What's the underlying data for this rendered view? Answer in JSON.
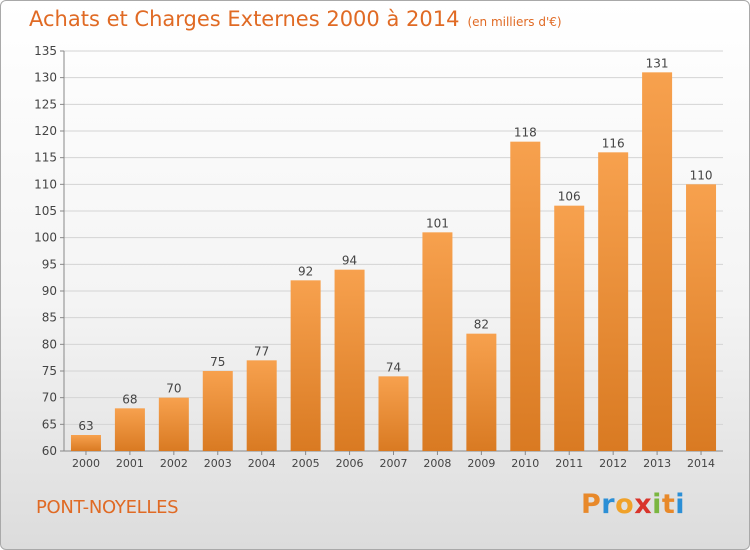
{
  "header": {
    "title": "Achats et Charges Externes 2000 à 2014",
    "subtitle": "(en milliers d'€)"
  },
  "footer": {
    "commune": "PONT-NOYELLES",
    "logo_text": "Proxiti",
    "logo_colors": [
      "#e8892a",
      "#2b8fd6",
      "#f0a22a",
      "#d9342b",
      "#7ab640",
      "#e8892a",
      "#2b8fd6"
    ]
  },
  "chart_data": {
    "type": "bar",
    "title": "Achats et Charges Externes 2000 à 2014",
    "xlabel": "",
    "ylabel": "",
    "categories": [
      "2000",
      "2001",
      "2002",
      "2003",
      "2004",
      "2005",
      "2006",
      "2007",
      "2008",
      "2009",
      "2010",
      "2011",
      "2012",
      "2013",
      "2014"
    ],
    "values": [
      63,
      68,
      70,
      75,
      77,
      92,
      94,
      74,
      101,
      82,
      118,
      106,
      116,
      131,
      110
    ],
    "ylim": [
      60,
      135
    ],
    "yticks": [
      60,
      65,
      70,
      75,
      80,
      85,
      90,
      95,
      100,
      105,
      110,
      115,
      120,
      125,
      130,
      135
    ],
    "grid": true,
    "bar_color": "#f0a04b",
    "bar_color_dark": "#d97a22"
  }
}
